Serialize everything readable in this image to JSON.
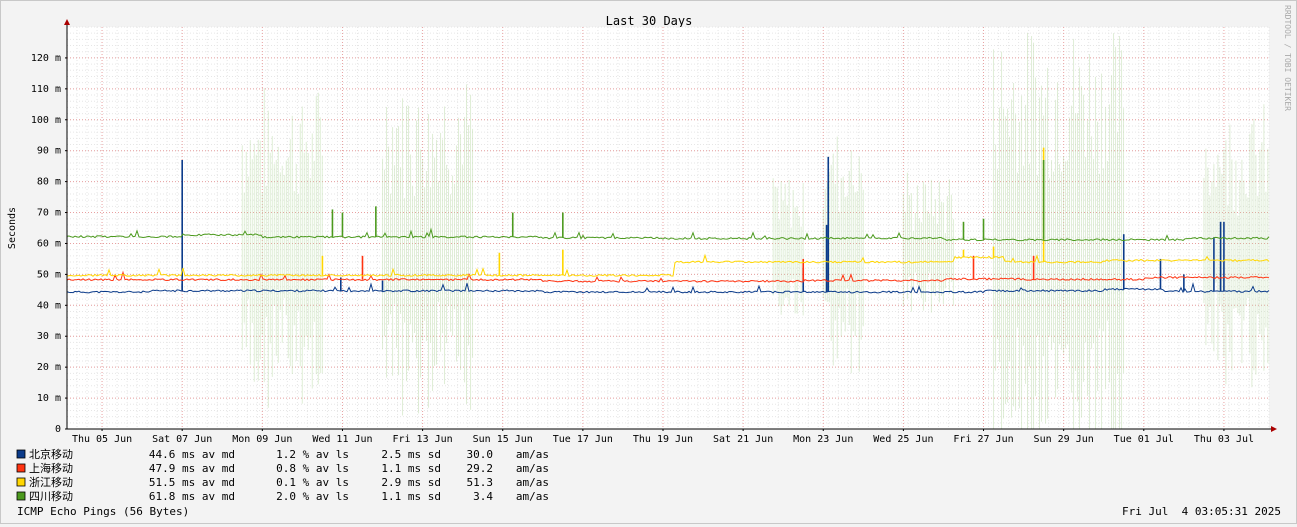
{
  "chart_data": {
    "type": "line",
    "title": "Last 30 Days",
    "ylabel": "Seconds",
    "watermark": "RRDTOOL / TOBI OETIKER",
    "ylim": [
      0,
      0.13
    ],
    "yticks": [
      {
        "v": 0.0,
        "label": "0"
      },
      {
        "v": 0.01,
        "label": "10 m"
      },
      {
        "v": 0.02,
        "label": "20 m"
      },
      {
        "v": 0.03,
        "label": "30 m"
      },
      {
        "v": 0.04,
        "label": "40 m"
      },
      {
        "v": 0.05,
        "label": "50 m"
      },
      {
        "v": 0.06,
        "label": "60 m"
      },
      {
        "v": 0.07,
        "label": "70 m"
      },
      {
        "v": 0.08,
        "label": "80 m"
      },
      {
        "v": 0.09,
        "label": "90 m"
      },
      {
        "v": 0.1,
        "label": "100 m"
      },
      {
        "v": 0.11,
        "label": "110 m"
      },
      {
        "v": 0.12,
        "label": "120 m"
      }
    ],
    "xlim": [
      "2025-06-04T03:00",
      "2025-07-04T03:00"
    ],
    "xticks": [
      {
        "date": "2025-06-05T00:00",
        "label": "Thu 05 Jun"
      },
      {
        "date": "2025-06-07T00:00",
        "label": "Sat 07 Jun"
      },
      {
        "date": "2025-06-09T00:00",
        "label": "Mon 09 Jun"
      },
      {
        "date": "2025-06-11T00:00",
        "label": "Wed 11 Jun"
      },
      {
        "date": "2025-06-13T00:00",
        "label": "Fri 13 Jun"
      },
      {
        "date": "2025-06-15T00:00",
        "label": "Sun 15 Jun"
      },
      {
        "date": "2025-06-17T00:00",
        "label": "Tue 17 Jun"
      },
      {
        "date": "2025-06-19T00:00",
        "label": "Thu 19 Jun"
      },
      {
        "date": "2025-06-21T00:00",
        "label": "Sat 21 Jun"
      },
      {
        "date": "2025-06-23T00:00",
        "label": "Mon 23 Jun"
      },
      {
        "date": "2025-06-25T00:00",
        "label": "Wed 25 Jun"
      },
      {
        "date": "2025-06-27T00:00",
        "label": "Fri 27 Jun"
      },
      {
        "date": "2025-06-29T00:00",
        "label": "Sun 29 Jun"
      },
      {
        "date": "2025-07-01T00:00",
        "label": "Tue 01 Jul"
      },
      {
        "date": "2025-07-03T00:00",
        "label": "Thu 03 Jul"
      }
    ],
    "grid": true,
    "series": [
      {
        "name": "北京移动",
        "color": "#0b3b8a",
        "avg": "44.6 ms av md",
        "loss": "1.2 % av ls",
        "sd": "2.5 ms sd",
        "ratio": "30.0",
        "unit": "am/as",
        "base": 0.0445,
        "steps": [
          [
            "2025-06-04T03:00",
            0.0443
          ],
          [
            "2025-06-06T06:00",
            0.0447
          ],
          [
            "2025-06-16T00:00",
            0.0443
          ],
          [
            "2025-06-27T00:00",
            0.0447
          ],
          [
            "2025-06-30T00:00",
            0.0452
          ],
          [
            "2025-07-01T12:00",
            0.0445
          ]
        ],
        "spikes": [
          [
            "2025-06-07T00:00",
            0.087
          ],
          [
            "2025-06-07T00:00",
            0.047
          ],
          [
            "2025-06-10T23:00",
            0.049
          ],
          [
            "2025-06-12T00:00",
            0.048
          ],
          [
            "2025-06-23T02:00",
            0.066
          ],
          [
            "2025-06-23T03:00",
            0.088
          ],
          [
            "2025-06-22T12:00",
            0.052
          ],
          [
            "2025-06-30T12:00",
            0.063
          ],
          [
            "2025-07-01T10:00",
            0.055
          ],
          [
            "2025-07-02T00:00",
            0.05
          ],
          [
            "2025-07-02T18:00",
            0.062
          ],
          [
            "2025-07-02T22:00",
            0.067
          ],
          [
            "2025-07-03T00:00",
            0.067
          ]
        ]
      },
      {
        "name": "上海移动",
        "color": "#ff3311",
        "avg": "47.9 ms av md",
        "loss": "0.8 % av ls",
        "sd": "1.1 ms sd",
        "ratio": "29.2",
        "unit": "am/as",
        "base": 0.048,
        "steps": [
          [
            "2025-06-04T03:00",
            0.0483
          ],
          [
            "2025-06-16T00:00",
            0.0478
          ],
          [
            "2025-06-22T12:00",
            0.048
          ],
          [
            "2025-06-26T00:00",
            0.0485
          ],
          [
            "2025-06-28T00:00",
            0.0484
          ],
          [
            "2025-07-01T00:00",
            0.049
          ]
        ],
        "spikes": [
          [
            "2025-06-11T12:00",
            0.056
          ],
          [
            "2025-06-22T12:00",
            0.055
          ],
          [
            "2025-06-26T18:00",
            0.056
          ],
          [
            "2025-06-28T06:00",
            0.056
          ]
        ]
      },
      {
        "name": "浙江移动",
        "color": "#ffd600",
        "avg": "51.5 ms av md",
        "loss": "0.1 % av ls",
        "sd": "2.9 ms sd",
        "ratio": "51.3",
        "unit": "am/as",
        "base": 0.05,
        "steps": [
          [
            "2025-06-04T03:00",
            0.0497
          ],
          [
            "2025-06-19T06:00",
            0.054
          ],
          [
            "2025-06-26T06:00",
            0.0555
          ],
          [
            "2025-06-27T12:00",
            0.054
          ],
          [
            "2025-06-30T00:00",
            0.0545
          ],
          [
            "2025-07-01T12:00",
            0.0545
          ]
        ],
        "spikes": [
          [
            "2025-06-10T12:00",
            0.056
          ],
          [
            "2025-06-14T22:00",
            0.057
          ],
          [
            "2025-06-16T12:00",
            0.058
          ],
          [
            "2025-06-26T12:00",
            0.058
          ],
          [
            "2025-06-27T06:00",
            0.059
          ],
          [
            "2025-06-28T12:00",
            0.091
          ]
        ]
      },
      {
        "name": "四川移动",
        "color": "#4c9a1e",
        "avg": "61.8 ms av md",
        "loss": "2.0 % av ls",
        "sd": "1.1 ms sd",
        "ratio": "3.4",
        "unit": "am/as",
        "base": 0.0618,
        "steps": [
          [
            "2025-06-04T03:00",
            0.0622
          ],
          [
            "2025-06-07T00:00",
            0.0628
          ],
          [
            "2025-06-09T00:00",
            0.0621
          ],
          [
            "2025-06-16T00:00",
            0.0618
          ],
          [
            "2025-06-19T00:00",
            0.0616
          ],
          [
            "2025-06-23T00:00",
            0.0617
          ],
          [
            "2025-06-26T00:00",
            0.0612
          ],
          [
            "2025-07-02T00:00",
            0.0617
          ],
          [
            "2025-07-04T03:00",
            0.0622
          ]
        ],
        "spikes": [
          [
            "2025-06-10T18:00",
            0.071
          ],
          [
            "2025-06-11T00:00",
            0.07
          ],
          [
            "2025-06-11T20:00",
            0.072
          ],
          [
            "2025-06-15T06:00",
            0.07
          ],
          [
            "2025-06-16T12:00",
            0.07
          ],
          [
            "2025-06-26T12:00",
            0.067
          ],
          [
            "2025-06-27T00:00",
            0.068
          ],
          [
            "2025-06-28T12:00",
            0.087
          ]
        ]
      }
    ]
  },
  "footer": {
    "left": "ICMP Echo Pings (56 Bytes)",
    "right": "Fri Jul  4 03:05:31 2025"
  }
}
